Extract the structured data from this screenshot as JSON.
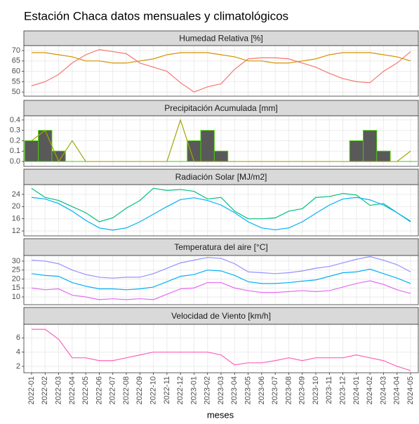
{
  "title": "Estación Chaca datos mensuales y climatológicos",
  "xlabel": "meses",
  "chart_data": [
    {
      "type": "line",
      "title": "Humedad Relativa [%]",
      "categories": [
        "2022-01",
        "2022-02",
        "2022-03",
        "2022-04",
        "2022-05",
        "2022-06",
        "2022-07",
        "2022-08",
        "2022-09",
        "2022-10",
        "2022-11",
        "2022-12",
        "2023-01",
        "2023-02",
        "2023-03",
        "2023-04",
        "2023-05",
        "2023-06",
        "2023-07",
        "2023-08",
        "2023-09",
        "2023-10",
        "2023-11",
        "2023-12",
        "2024-01",
        "2024-02",
        "2024-03",
        "2024-04",
        "2024-05"
      ],
      "series": [
        {
          "color": "#F8766D",
          "values": [
            53,
            55,
            58.5,
            64,
            68,
            70.5,
            69.5,
            68.5,
            64,
            62,
            60,
            54.5,
            50,
            52.5,
            54,
            61,
            66,
            66.5,
            66.5,
            66,
            64,
            62,
            59,
            56.5,
            55,
            54.5,
            60,
            64,
            69.5
          ]
        },
        {
          "color": "#D39200",
          "values": [
            69,
            69,
            68,
            67,
            65,
            65,
            64,
            64,
            65,
            66,
            68,
            69,
            69,
            69,
            68,
            67,
            65,
            65,
            64,
            64,
            65,
            66,
            68,
            69,
            69,
            69,
            68,
            67,
            65
          ]
        }
      ],
      "ylim": [
        48,
        72.4
      ],
      "yticks": [
        50,
        55,
        60,
        65,
        70
      ],
      "grid": true
    },
    {
      "type": "bar",
      "title": "Precipitación Acumulada [mm]",
      "categories": [
        "2022-01",
        "2022-02",
        "2022-03",
        "2022-04",
        "2022-05",
        "2022-06",
        "2022-07",
        "2022-08",
        "2022-09",
        "2022-10",
        "2022-11",
        "2022-12",
        "2023-01",
        "2023-02",
        "2023-03",
        "2023-04",
        "2023-05",
        "2023-06",
        "2023-07",
        "2023-08",
        "2023-09",
        "2023-10",
        "2023-11",
        "2023-12",
        "2024-01",
        "2024-02",
        "2024-03",
        "2024-04",
        "2024-05"
      ],
      "series": [
        {
          "color": "#595959",
          "edgecolor": "#44CC00",
          "values": [
            0.2,
            0.3,
            0.1,
            0,
            0,
            0,
            0,
            0,
            0,
            0,
            0,
            0,
            0.2,
            0.3,
            0.1,
            0,
            0,
            0,
            0,
            0,
            0,
            0,
            0,
            0,
            0.2,
            0.3,
            0.1,
            0,
            0
          ]
        },
        {
          "type": "line",
          "color": "#A3A500",
          "values": [
            0.2,
            0.3,
            0,
            0.2,
            0,
            0,
            0,
            0,
            0,
            0,
            0,
            0.4,
            0,
            0,
            0,
            0,
            0,
            0,
            0,
            0,
            0,
            0,
            0,
            0,
            0,
            0,
            0,
            0,
            0.1
          ]
        }
      ],
      "ylim": [
        -0.047,
        0.44
      ],
      "yticks": [
        {
          "value": 0,
          "label": "0.0"
        },
        {
          "value": 0.1,
          "label": "0.1"
        },
        {
          "value": 0.2,
          "label": "0.2"
        },
        {
          "value": 0.3,
          "label": "0.3"
        },
        {
          "value": 0.4,
          "label": "0.4"
        }
      ],
      "grid": true
    },
    {
      "type": "line",
      "title": "Radiación Solar [MJ/m2]",
      "categories": [
        "2022-01",
        "2022-02",
        "2022-03",
        "2022-04",
        "2022-05",
        "2022-06",
        "2022-07",
        "2022-08",
        "2022-09",
        "2022-10",
        "2022-11",
        "2022-12",
        "2023-01",
        "2023-02",
        "2023-03",
        "2023-04",
        "2023-05",
        "2023-06",
        "2023-07",
        "2023-08",
        "2023-09",
        "2023-10",
        "2023-11",
        "2023-12",
        "2024-01",
        "2024-02",
        "2024-03",
        "2024-04",
        "2024-05"
      ],
      "series": [
        {
          "color": "#00BF7D",
          "values": [
            26,
            23,
            22,
            20,
            18,
            15,
            16.3,
            19.5,
            22,
            26,
            25.3,
            25.6,
            25,
            22.5,
            23,
            18.5,
            16,
            16,
            16.3,
            18.5,
            19.3,
            23,
            23.3,
            24.3,
            23.8,
            20.4,
            21,
            18,
            15.2
          ]
        },
        {
          "color": "#00B0F6",
          "values": [
            23,
            22.5,
            21,
            18.5,
            15.5,
            13,
            12.3,
            13,
            15,
            17.5,
            20,
            22.3,
            22.9,
            22,
            20.5,
            18,
            15,
            13,
            12.4,
            13,
            15,
            17.8,
            20.5,
            22.5,
            23,
            22.2,
            20.5,
            18,
            15
          ]
        }
      ],
      "ylim": [
        10.4,
        27.2
      ],
      "yticks": [
        12,
        16,
        20,
        24
      ],
      "grid": true
    },
    {
      "type": "line",
      "title": "Temperatura del aire [°C]",
      "categories": [
        "2022-01",
        "2022-02",
        "2022-03",
        "2022-04",
        "2022-05",
        "2022-06",
        "2022-07",
        "2022-08",
        "2022-09",
        "2022-10",
        "2022-11",
        "2022-12",
        "2023-01",
        "2023-02",
        "2023-03",
        "2023-04",
        "2023-05",
        "2023-06",
        "2023-07",
        "2023-08",
        "2023-09",
        "2023-10",
        "2023-11",
        "2023-12",
        "2024-01",
        "2024-02",
        "2024-03",
        "2024-04",
        "2024-05"
      ],
      "series": [
        {
          "color": "#9590FF",
          "values": [
            30.5,
            30,
            28.5,
            25,
            22.5,
            21,
            20.5,
            21,
            21,
            23,
            26,
            29,
            30.5,
            32,
            31.5,
            28.5,
            24,
            23.5,
            23,
            23.5,
            24.5,
            26,
            27,
            29,
            31,
            32.5,
            30.5,
            28,
            24
          ]
        },
        {
          "color": "#00B0F6",
          "values": [
            23,
            22,
            21.5,
            18,
            16,
            14.5,
            14.5,
            14,
            14.5,
            15.5,
            18.5,
            21.5,
            22.5,
            25,
            24.5,
            22,
            18.5,
            17.5,
            17.5,
            18,
            18.8,
            19.5,
            21.5,
            23.5,
            24,
            25.5,
            23,
            20.5,
            17.5
          ]
        },
        {
          "color": "#E76BF3",
          "values": [
            15,
            14,
            14.5,
            11,
            10,
            8.5,
            9,
            8.5,
            9,
            8.5,
            11.5,
            14.5,
            15,
            18,
            18,
            15,
            13.5,
            12.5,
            12.5,
            13,
            13.5,
            13,
            13.5,
            15.5,
            17.5,
            19,
            17,
            14,
            12
          ]
        }
      ],
      "ylim": [
        5.7,
        33.1
      ],
      "yticks": [
        10,
        15,
        20,
        25,
        30
      ],
      "grid": true
    },
    {
      "type": "line",
      "title": "Velocidad de Viento [km/h]",
      "categories": [
        "2022-01",
        "2022-02",
        "2022-03",
        "2022-04",
        "2022-05",
        "2022-06",
        "2022-07",
        "2022-08",
        "2022-09",
        "2022-10",
        "2022-11",
        "2022-12",
        "2023-01",
        "2023-02",
        "2023-03",
        "2023-04",
        "2023-05",
        "2023-06",
        "2023-07",
        "2023-08",
        "2023-09",
        "2023-10",
        "2023-11",
        "2023-12",
        "2024-01",
        "2024-02",
        "2024-03",
        "2024-04",
        "2024-05"
      ],
      "series": [
        {
          "color": "#FF62BC",
          "values": [
            7.2,
            7.2,
            5.8,
            3.2,
            3.2,
            2.8,
            2.8,
            3.2,
            3.6,
            4,
            4,
            4,
            4,
            4,
            3.6,
            2.2,
            2.5,
            2.5,
            2.8,
            3.2,
            2.8,
            3.2,
            3.2,
            3.2,
            3.6,
            3.2,
            2.8,
            2,
            1.4
          ]
        }
      ],
      "ylim": [
        1.1,
        7.9
      ],
      "yticks": [
        2,
        4,
        6
      ],
      "grid": true
    }
  ]
}
